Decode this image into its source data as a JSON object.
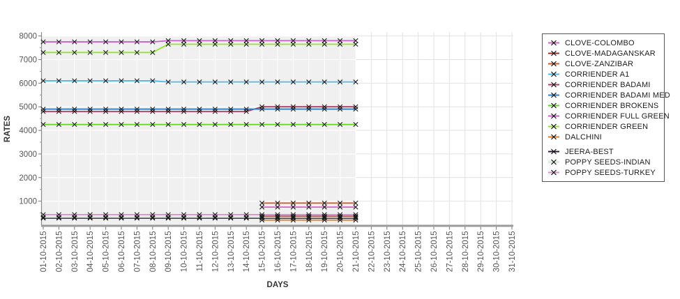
{
  "chart_data": {
    "type": "line",
    "title": "",
    "xlabel": "DAYS",
    "ylabel": "RATES",
    "ylim": [
      0,
      8150
    ],
    "y_ticks": [
      1000,
      2000,
      3000,
      4000,
      5000,
      6000,
      7000,
      8000
    ],
    "grid": true,
    "legend_position": "right",
    "x_tick_labels": [
      "01-10-2015",
      "02-10-2015",
      "03-10-2015",
      "04-10-2015",
      "05-10-2015",
      "06-10-2015",
      "07-10-2015",
      "08-10-2015",
      "09-10-2015",
      "10-10-2015",
      "11-10-2015",
      "12-10-2015",
      "13-10-2015",
      "14-10-2015",
      "15-10-2015",
      "16-10-2015",
      "17-10-2015",
      "18-10-2015",
      "19-10-2015",
      "20-10-2015",
      "21-10-2015",
      "22-10-2015",
      "23-10-2015",
      "24-10-2015",
      "25-10-2015",
      "26-10-2015",
      "27-10-2015",
      "28-10-2015",
      "29-10-2015",
      "30-10-2015",
      "31-10-2015"
    ],
    "plotted_day_count": 21,
    "marker": "x",
    "marker_color": "#1a1a1a",
    "band_color": "#f0f0f0",
    "series": [
      {
        "name": "CLOVE-COLOMBO",
        "color": "#d95fc3",
        "values": [
          null,
          null,
          null,
          null,
          null,
          null,
          null,
          null,
          null,
          null,
          null,
          null,
          null,
          null,
          750,
          750,
          750,
          750,
          750,
          750,
          750
        ]
      },
      {
        "name": "CLOVE-MADAGANSKAR",
        "color": "#a03028",
        "values": [
          null,
          null,
          null,
          null,
          null,
          null,
          null,
          null,
          null,
          null,
          null,
          null,
          null,
          null,
          360,
          360,
          360,
          360,
          360,
          360,
          360
        ]
      },
      {
        "name": "CLOVE-ZANZIBAR",
        "color": "#d9531e",
        "values": [
          null,
          null,
          null,
          null,
          null,
          null,
          null,
          null,
          null,
          null,
          null,
          null,
          null,
          null,
          920,
          920,
          920,
          920,
          920,
          920,
          920
        ]
      },
      {
        "name": "CORRIENDER A1",
        "color": "#4db8e8",
        "values": [
          6100,
          6100,
          6100,
          6100,
          6100,
          6100,
          6100,
          6100,
          6050,
          6050,
          6050,
          6050,
          6050,
          6050,
          6050,
          6050,
          6050,
          6050,
          6050,
          6050,
          6050
        ]
      },
      {
        "name": "CORRIENDER BADAMI",
        "color": "#b03865",
        "values": [
          4800,
          4800,
          4800,
          4800,
          4800,
          4800,
          4800,
          4800,
          4800,
          4800,
          4800,
          4800,
          4800,
          4800,
          5000,
          5000,
          5000,
          5000,
          5000,
          5000,
          5000
        ]
      },
      {
        "name": "CORRIENDER BADAMI MED",
        "color": "#2f7ec2",
        "values": [
          4900,
          4900,
          4900,
          4900,
          4900,
          4900,
          4900,
          4900,
          4900,
          4900,
          4900,
          4900,
          4900,
          4900,
          4900,
          4900,
          4900,
          4900,
          4900,
          4900,
          4900
        ]
      },
      {
        "name": "CORRIENDER BROKENS",
        "color": "#62d41c",
        "values": [
          4250,
          4250,
          4250,
          4250,
          4250,
          4250,
          4250,
          4250,
          4250,
          4250,
          4250,
          4250,
          4250,
          4250,
          4250,
          4250,
          4250,
          4250,
          4250,
          4250,
          4250
        ]
      },
      {
        "name": "CORRIENDER FULL GREEN",
        "color": "#c95fc9",
        "values": [
          7750,
          7750,
          7750,
          7750,
          7750,
          7750,
          7750,
          7750,
          7800,
          7800,
          7800,
          7800,
          7800,
          7800,
          7800,
          7800,
          7800,
          7800,
          7800,
          7800,
          7800
        ]
      },
      {
        "name": "CORRIENDER GREEN",
        "color": "#94e432",
        "values": [
          7300,
          7300,
          7300,
          7300,
          7300,
          7300,
          7300,
          7300,
          7650,
          7650,
          7650,
          7650,
          7650,
          7650,
          7650,
          7650,
          7650,
          7650,
          7650,
          7650,
          7650
        ]
      },
      {
        "name": "DALCHINI",
        "color": "#d97b33",
        "values": [
          null,
          null,
          null,
          null,
          null,
          null,
          null,
          null,
          null,
          null,
          null,
          null,
          null,
          null,
          200,
          200,
          200,
          200,
          200,
          200,
          200
        ]
      },
      {
        "name": "JEERA-BEST",
        "color": "#33183f",
        "values": [
          280,
          280,
          280,
          280,
          280,
          280,
          280,
          280,
          280,
          280,
          280,
          280,
          280,
          280,
          280,
          280,
          280,
          280,
          280,
          280,
          280
        ]
      },
      {
        "name": "POPPY SEEDS-INDIAN",
        "color": "#cde8cc",
        "values": [
          320,
          320,
          320,
          320,
          320,
          320,
          320,
          320,
          320,
          320,
          320,
          320,
          320,
          320,
          320,
          320,
          320,
          320,
          320,
          320,
          320
        ]
      },
      {
        "name": "POPPY SEEDS-TURKEY",
        "color": "#d990cf",
        "values": [
          430,
          430,
          430,
          430,
          430,
          430,
          430,
          430,
          430,
          430,
          430,
          430,
          430,
          430,
          430,
          430,
          430,
          430,
          430,
          430,
          430
        ]
      }
    ]
  }
}
